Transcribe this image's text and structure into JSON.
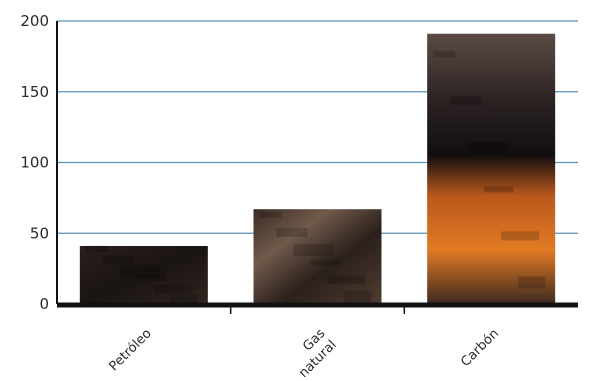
{
  "chart_data": {
    "type": "bar",
    "categories": [
      "Petróleo",
      "Gas natural",
      "Carbón"
    ],
    "category_lines": [
      [
        "Petróleo"
      ],
      [
        "Gas",
        "natural"
      ],
      [
        "Carbón"
      ]
    ],
    "values": [
      41,
      67,
      191
    ],
    "ylim": [
      0,
      200
    ],
    "yticks": [
      0,
      50,
      100,
      150,
      200
    ],
    "grid": true,
    "title": "",
    "xlabel": "",
    "ylabel": "",
    "colors": {
      "grid": "#5a93b3",
      "axis": "#111111",
      "bar_dark": "#1d1614",
      "bar_mid": "#4a3a30",
      "accent_orange": "#e8761e"
    }
  }
}
